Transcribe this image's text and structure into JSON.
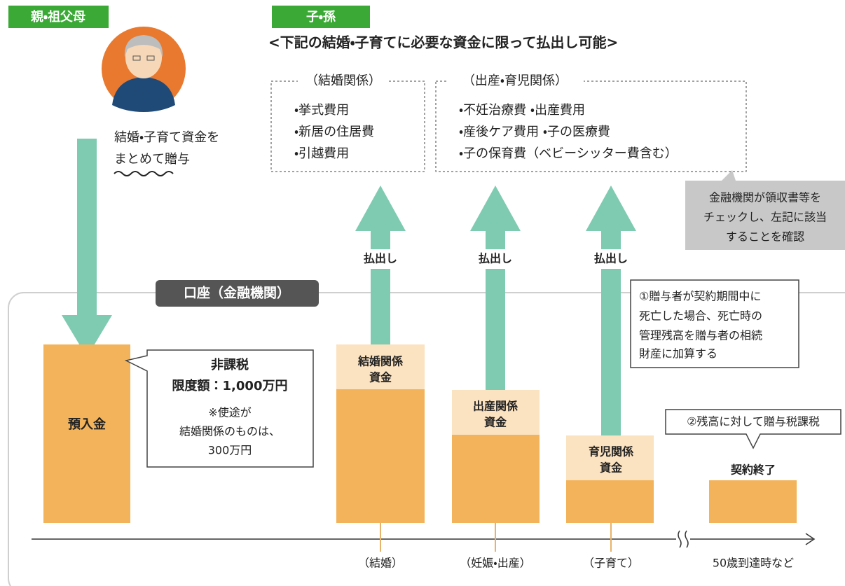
{
  "labels": {
    "giver": "親・祖父母",
    "receiver": "子・孫"
  },
  "heading": "<下記の結婚・子育てに必要な資金に限って払出し可能>",
  "gift_text": [
    "結婚・子育て資金を",
    "まとめて贈与"
  ],
  "marriage_box": {
    "title": "（結婚関係）",
    "items": [
      "・挙式費用",
      "・新居の住居費",
      "・引越費用"
    ]
  },
  "childcare_box": {
    "title": "（出産・育児関係）",
    "items": [
      "・不妊治療費 ・出産費用",
      "・産後ケア費用 ・子の医療費",
      "・子の保育費（ベビーシッター費含む）"
    ]
  },
  "bank_note": [
    "金融機関が領収書等を",
    "チェックし、左記に該当",
    "することを確認"
  ],
  "withdraw_labels": [
    "払出し",
    "払出し",
    "払出し"
  ],
  "account_label": "口座（金融機関）",
  "deposit": "預入金",
  "tax_box": {
    "lines": [
      "非課税",
      "限度額：1,000万円"
    ],
    "note": [
      "※使途が",
      "結婚関係のものは、",
      "300万円"
    ]
  },
  "funds": [
    [
      "結婚関係",
      "資金"
    ],
    [
      "出産関係",
      "資金"
    ],
    [
      "育児関係",
      "資金"
    ]
  ],
  "contract_end": "契約終了",
  "note1": [
    "①贈与者が契約期間中に",
    "死亡した場合、死亡時の",
    "管理残高を贈与者の相続",
    "財産に加算する"
  ],
  "note2": "②残高に対して贈与税課税",
  "timeline": [
    "（結婚）",
    "（妊娠・出産）",
    "（子育て）",
    "50歳到達時など"
  ]
}
